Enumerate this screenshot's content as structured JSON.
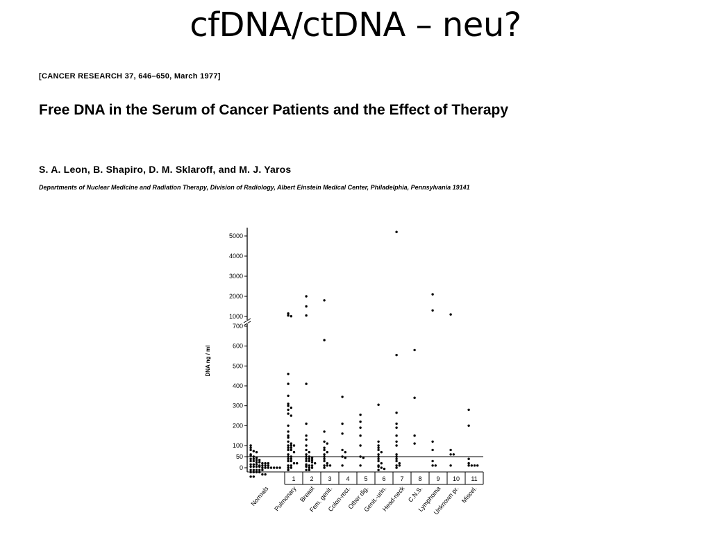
{
  "slide": {
    "title": "cfDNA/ctDNA – neu?"
  },
  "paper": {
    "journal_ref": "[CANCER RESEARCH 37, 646–650, March 1977]",
    "title": "Free DNA in the Serum of Cancer Patients and the Effect of Therapy",
    "authors": "S. A. Leon, B. Shapiro, D. M. Sklaroff, and M. J. Yaros",
    "affiliation": "Departments of Nuclear Medicine and Radiation Therapy, Division of Radiology, Albert Einstein Medical Center, Philadelphia, Pennsylvania 19141"
  },
  "chart_data": {
    "type": "scatter",
    "title": "",
    "ylabel": "DNA  ng / ml",
    "xlabel": "",
    "y_axis": {
      "broken": true,
      "lower_range": [
        0,
        700
      ],
      "upper_range": [
        1000,
        5000
      ],
      "lower_ticks": [
        0,
        50,
        100,
        200,
        300,
        400,
        500,
        600,
        700
      ],
      "upper_ticks": [
        1000,
        2000,
        3000,
        4000,
        5000
      ],
      "reference_line": 50
    },
    "categories": [
      {
        "number": "",
        "name": "Normals",
        "values": [
          100,
          90,
          80,
          75,
          70,
          60,
          55,
          50,
          45,
          40,
          40,
          35,
          35,
          30,
          30,
          25,
          25,
          20,
          20,
          20,
          15,
          15,
          15,
          10,
          10,
          10,
          10,
          5,
          5,
          5,
          5,
          0,
          0,
          0,
          0,
          0,
          0,
          0,
          -10,
          -10,
          -10,
          -10,
          -10,
          -20,
          -20,
          -20,
          -20,
          -30,
          -30,
          -40,
          -40
        ]
      },
      {
        "number": "1",
        "name": "Pulmonary",
        "values": [
          1150,
          1050,
          750,
          460,
          410,
          350,
          310,
          300,
          290,
          280,
          260,
          250,
          200,
          170,
          150,
          140,
          120,
          110,
          100,
          100,
          100,
          90,
          90,
          80,
          80,
          70,
          60,
          50,
          50,
          40,
          40,
          30,
          30,
          20,
          20,
          10,
          10,
          0,
          0,
          -10
        ]
      },
      {
        "number": "2",
        "name": "Breast",
        "values": [
          2000,
          1500,
          1050,
          410,
          210,
          150,
          130,
          100,
          80,
          70,
          60,
          50,
          50,
          45,
          40,
          40,
          35,
          30,
          30,
          25,
          20,
          20,
          15,
          10,
          10,
          5,
          0,
          0,
          -10,
          -10
        ]
      },
      {
        "number": "3",
        "name": "Fem. genit.",
        "values": [
          1800,
          630,
          170,
          120,
          110,
          90,
          80,
          70,
          60,
          50,
          40,
          30,
          20,
          10,
          10,
          10,
          0
        ]
      },
      {
        "number": "4",
        "name": "Colon-rect.",
        "values": [
          345,
          210,
          160,
          80,
          70,
          50,
          45,
          10
        ]
      },
      {
        "number": "5",
        "name": "Other dig.",
        "values": [
          255,
          220,
          190,
          150,
          100,
          50,
          45,
          10
        ]
      },
      {
        "number": "6",
        "name": "Genit.-urin.",
        "values": [
          305,
          120,
          100,
          90,
          80,
          70,
          60,
          50,
          40,
          30,
          20,
          10,
          5,
          0,
          -5,
          -10
        ]
      },
      {
        "number": "7",
        "name": "Head-neck",
        "values": [
          5200,
          555,
          265,
          210,
          190,
          150,
          120,
          100,
          60,
          50,
          40,
          30,
          20,
          10,
          10,
          0
        ]
      },
      {
        "number": "8",
        "name": "C.N.S.",
        "values": [
          580,
          340,
          150,
          110
        ]
      },
      {
        "number": "9",
        "name": "Lymphoma",
        "values": [
          2100,
          1300,
          120,
          80,
          30,
          10,
          10
        ]
      },
      {
        "number": "10",
        "name": "Unknown pr.",
        "values": [
          1100,
          80,
          60,
          60,
          10
        ]
      },
      {
        "number": "11",
        "name": "Miscel.",
        "values": [
          280,
          200,
          40,
          20,
          10,
          10,
          10,
          10
        ]
      }
    ]
  },
  "colors": {
    "text": "#000000",
    "background": "#ffffff",
    "points": "#000000"
  }
}
